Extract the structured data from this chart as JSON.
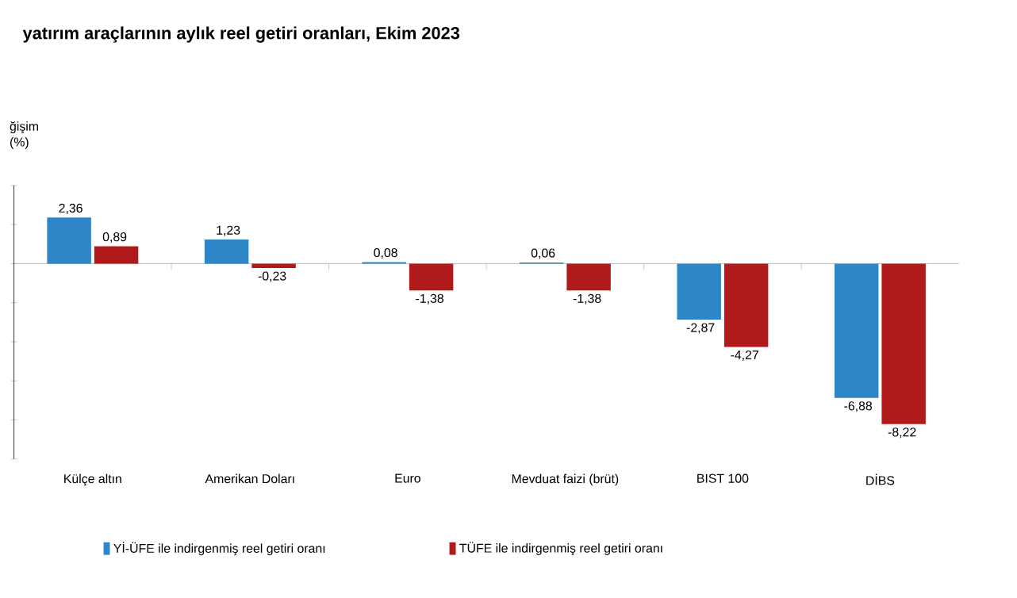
{
  "chart_data": {
    "type": "bar",
    "title": "yatırım araçlarının aylık reel getiri oranları, Ekim 2023",
    "ylabel": "ğişim (%)",
    "categories": [
      "Külçe altın",
      "Amerikan Doları",
      "Euro",
      "Mevduat faizi (brüt)",
      "BIST 100",
      "DİBS"
    ],
    "series": [
      {
        "name": "Yİ-ÜFE ile indirgenmiş reel getiri oranı",
        "color": "#2e86c9",
        "values": [
          2.36,
          1.23,
          0.08,
          0.06,
          -2.87,
          -6.88
        ],
        "value_labels": [
          "2,36",
          "1,23",
          "0,08",
          "0,06",
          "-2,87",
          "-6,88"
        ]
      },
      {
        "name": "TÜFE ile indirgenmiş reel getiri oranı",
        "color": "#b11a1a",
        "values": [
          0.89,
          -0.23,
          -1.38,
          -1.38,
          -4.27,
          -8.22
        ],
        "value_labels": [
          "0,89",
          "-0,23",
          "-1,38",
          "-1,38",
          "-4,27",
          "-8,22"
        ]
      }
    ],
    "ylim": [
      -10,
      4
    ],
    "yticks": [
      {
        "value": 4,
        "label": null
      },
      {
        "value": 2,
        "label": null
      },
      {
        "value": 0,
        "label": null
      },
      {
        "value": -2,
        "label": null
      },
      {
        "value": -4,
        "label": null
      },
      {
        "value": -6,
        "label": null
      },
      {
        "value": -8,
        "label": null
      },
      {
        "value": -10,
        "label": null
      }
    ],
    "tick_labels": "x",
    "legend": "bottom"
  }
}
